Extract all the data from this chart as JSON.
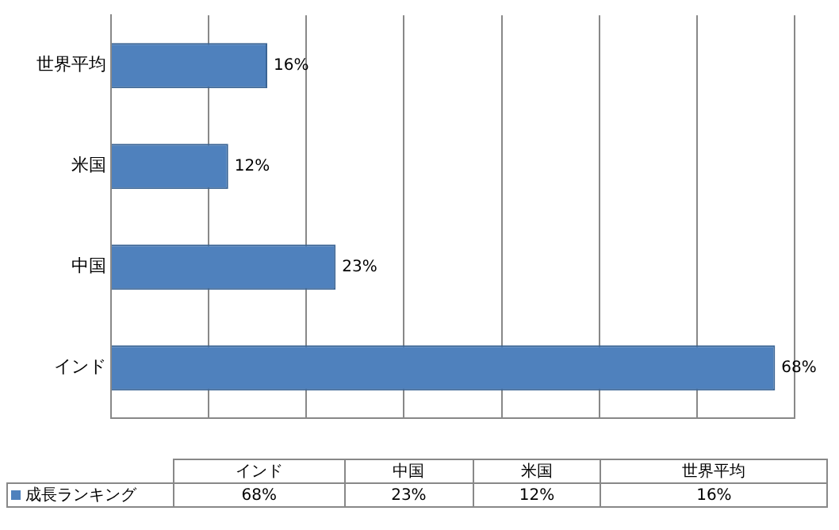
{
  "chart_data": {
    "type": "bar",
    "orientation": "horizontal",
    "categories": [
      "世界平均",
      "米国",
      "中国",
      "インド"
    ],
    "series": [
      {
        "name": "成長ランキング",
        "color": "#4f81bd",
        "values": [
          16,
          12,
          23,
          68
        ],
        "value_labels": [
          "16%",
          "12%",
          "23%",
          "68%"
        ]
      }
    ],
    "xlim": [
      0,
      70
    ],
    "xticks": [
      {
        "value": 0,
        "label": null
      },
      {
        "value": 10,
        "label": null
      },
      {
        "value": 20,
        "label": null
      },
      {
        "value": 30,
        "label": null
      },
      {
        "value": 40,
        "label": null
      },
      {
        "value": 50,
        "label": null
      },
      {
        "value": 60,
        "label": null
      },
      {
        "value": 70,
        "label": null
      }
    ],
    "grid": "x",
    "data_labels": true
  }
}
